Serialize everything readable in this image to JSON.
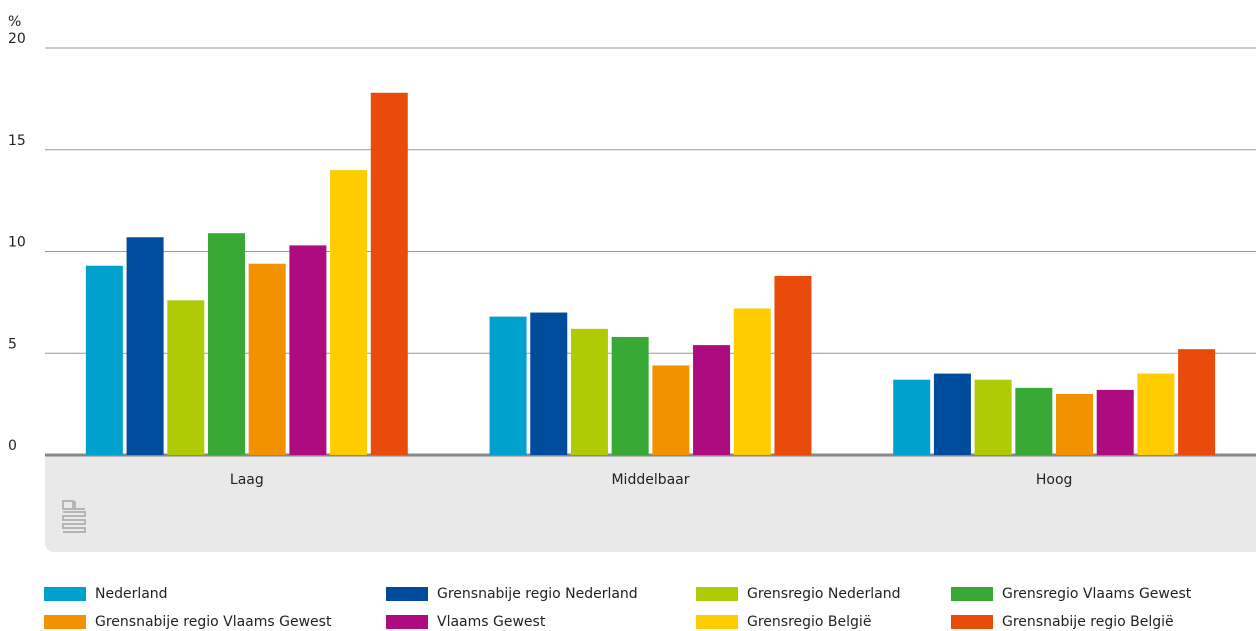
{
  "chart_data": {
    "type": "bar",
    "y_label": "%",
    "categories": [
      "Laag",
      "Middelbaar",
      "Hoog"
    ],
    "series": [
      {
        "name": "Nederland",
        "color": "#00a1cd",
        "values": [
          9.3,
          6.8,
          3.7
        ]
      },
      {
        "name": "Grensnabije regio Nederland",
        "color": "#004c9c",
        "values": [
          10.7,
          7.0,
          4.0
        ]
      },
      {
        "name": "Grensregio Nederland",
        "color": "#afcb05",
        "values": [
          7.6,
          6.2,
          3.7
        ]
      },
      {
        "name": "Grensregio Vlaams Gewest",
        "color": "#38a935",
        "values": [
          10.9,
          5.8,
          3.3
        ]
      },
      {
        "name": "Grensnabije regio Vlaams Gewest",
        "color": "#f39200",
        "values": [
          9.4,
          4.4,
          3.0
        ]
      },
      {
        "name": "Vlaams Gewest",
        "color": "#af0b80",
        "values": [
          10.3,
          5.4,
          3.2
        ]
      },
      {
        "name": "Grensregio België",
        "color": "#ffcc00",
        "values": [
          14.0,
          7.2,
          4.0
        ]
      },
      {
        "name": "Grensnabije regio België",
        "color": "#e94c0a",
        "values": [
          17.8,
          8.8,
          5.2
        ]
      }
    ],
    "ylim": [
      0,
      20
    ],
    "yticks": [
      0,
      5,
      10,
      15,
      20
    ],
    "grid": true,
    "legend": "bottom"
  }
}
